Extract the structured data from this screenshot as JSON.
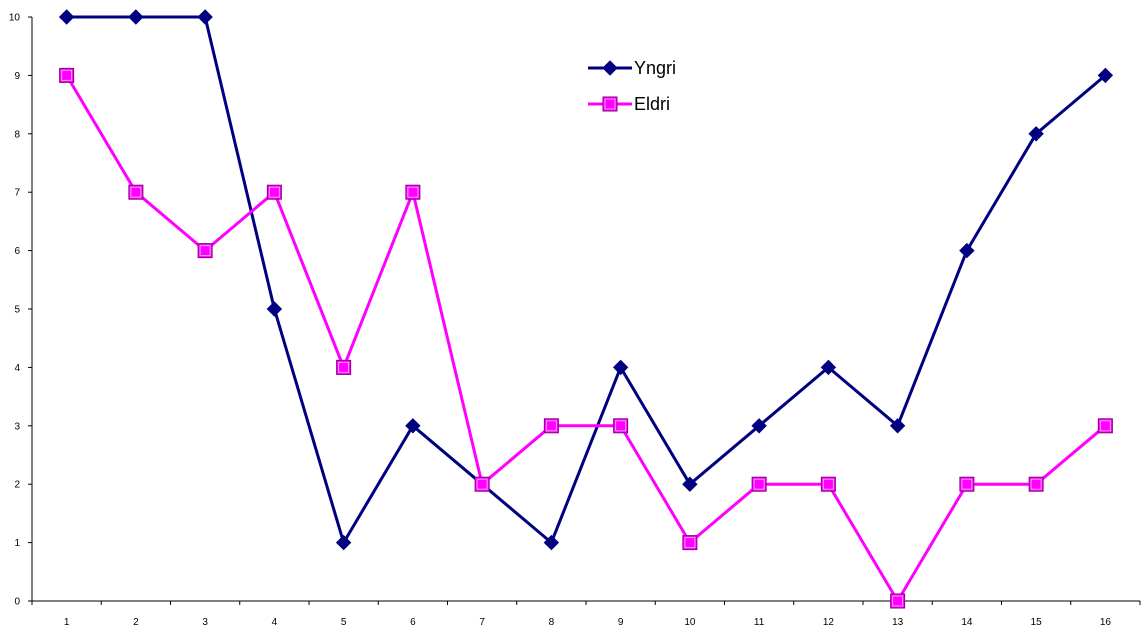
{
  "chart_data": {
    "type": "line",
    "title": "",
    "xlabel": "",
    "ylabel": "",
    "x": [
      1,
      2,
      3,
      4,
      5,
      6,
      7,
      8,
      9,
      10,
      11,
      12,
      13,
      14,
      15,
      16
    ],
    "x_tick_labels": [
      "1",
      "2",
      "3",
      "4",
      "5",
      "6",
      "7",
      "8",
      "9",
      "10",
      "11",
      "12",
      "13",
      "14",
      "15",
      "16"
    ],
    "y_tick_labels": [
      "0",
      "1",
      "2",
      "3",
      "4",
      "5",
      "6",
      "7",
      "8",
      "9",
      "10"
    ],
    "ylim": [
      0,
      10
    ],
    "grid": false,
    "legend_position": "top-center",
    "series": [
      {
        "name": "Yngri",
        "color": "#000080",
        "marker": "diamond",
        "values": [
          10,
          10,
          10,
          5,
          1,
          3,
          2,
          1,
          4,
          2,
          3,
          4,
          3,
          6,
          8,
          9
        ]
      },
      {
        "name": "Eldri",
        "color": "#ff00ff",
        "marker": "square",
        "values": [
          9,
          7,
          6,
          7,
          4,
          7,
          2,
          3,
          3,
          1,
          2,
          2,
          0,
          2,
          2,
          3
        ]
      }
    ]
  }
}
